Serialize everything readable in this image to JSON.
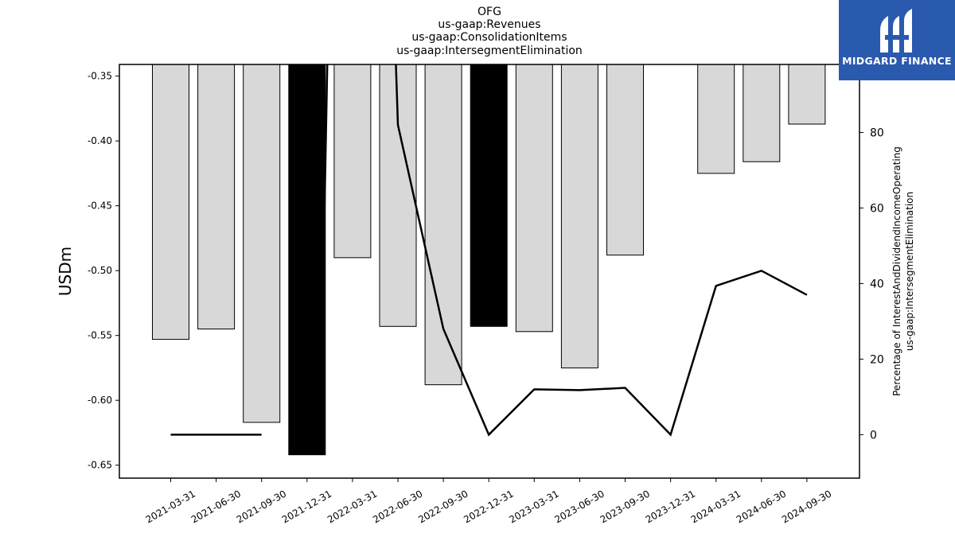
{
  "chart_data": {
    "type": "bar",
    "title_lines": [
      "OFG",
      "us-gaap:Revenues",
      "us-gaap:ConsolidationItems",
      "us-gaap:IntersegmentElimination"
    ],
    "categories": [
      "2021-03-31",
      "2021-06-30",
      "2021-09-30",
      "2021-12-31",
      "2022-03-31",
      "2022-06-30",
      "2022-09-30",
      "2022-12-31",
      "2023-03-31",
      "2023-06-30",
      "2023-09-30",
      "2023-12-31",
      "2024-03-31",
      "2024-06-30",
      "2024-09-30"
    ],
    "ylabel": "USDm",
    "y2label_lines": [
      "Percentage of InterestAndDividendIncomeOperating",
      "us-gaap:IntersegmentElimination"
    ],
    "ylim": [
      -0.66,
      -0.341
    ],
    "y2lim": [
      -11.5,
      98
    ],
    "yticks": [
      "-0.35",
      "-0.40",
      "-0.45",
      "-0.50",
      "-0.55",
      "-0.60",
      "-0.65"
    ],
    "y2ticks": [
      "0",
      "20",
      "40",
      "60",
      "80"
    ],
    "series": [
      {
        "type": "bar",
        "values": [
          -0.553,
          -0.545,
          -0.617,
          -0.642,
          -0.49,
          -0.543,
          -0.588,
          -0.543,
          -0.547,
          -0.575,
          -0.488,
          null,
          -0.425,
          -0.416,
          -0.387
        ],
        "highlight": [
          false,
          false,
          false,
          true,
          false,
          false,
          false,
          true,
          false,
          false,
          false,
          false,
          false,
          false,
          false
        ],
        "color": "#d8d8d8",
        "highlight_color": "#000000"
      },
      {
        "type": "line",
        "axis": "right",
        "values": [
          0,
          0,
          0,
          null,
          null,
          null,
          28,
          0,
          12,
          11.8,
          12.4,
          0,
          39.4,
          43.4,
          37
        ],
        "color": "#000000"
      }
    ],
    "extra_line_segments": [
      {
        "points": [
          [
            2.6,
            0
          ],
          [
            3.0,
            0
          ]
        ]
      },
      {
        "points": [
          [
            3.35,
            38
          ],
          [
            3.47,
            113
          ]
        ]
      },
      {
        "points": [
          [
            4.9,
            118
          ],
          [
            5.0,
            82
          ],
          [
            6.0,
            28
          ]
        ]
      }
    ],
    "grid": false,
    "legend": "none"
  },
  "logo": {
    "text": "MIDGARD FINANCE",
    "color": "#2a5aae"
  }
}
